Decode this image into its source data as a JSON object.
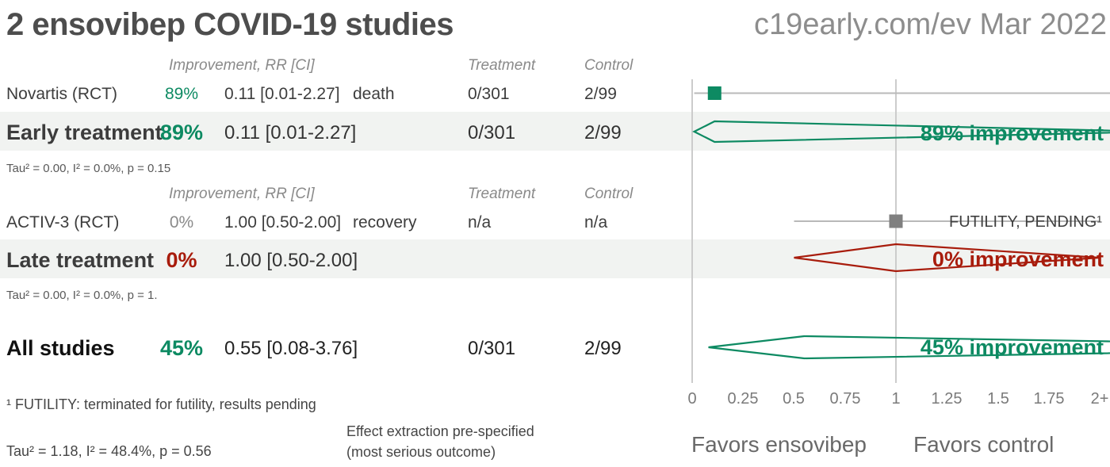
{
  "header": {
    "title": "2 ensovibep COVID-19 studies",
    "site": "c19early.com/ev Mar 2022"
  },
  "columns": {
    "improvement": "Improvement, RR [CI]",
    "treatment": "Treatment",
    "control": "Control"
  },
  "rows": {
    "novartis": {
      "name": "Novartis (RCT)",
      "pct": "89%",
      "rr": "0.11 [0.01-2.27]",
      "outcome": "death",
      "treatment": "0/301",
      "control": "2/99"
    },
    "early": {
      "name": "Early treatment",
      "pct": "89%",
      "rr": "0.11 [0.01-2.27]",
      "treatment": "0/301",
      "control": "2/99",
      "tau": "Tau² = 0.00, I² = 0.0%, p = 0.15"
    },
    "activ3": {
      "name": "ACTIV-3 (RCT)",
      "pct": "0%",
      "rr": "1.00 [0.50-2.00]",
      "outcome": "recovery",
      "treatment": "n/a",
      "control": "n/a"
    },
    "late": {
      "name": "Late treatment",
      "pct": "0%",
      "rr": "1.00 [0.50-2.00]",
      "tau": "Tau² = 0.00, I² = 0.0%, p = 1."
    },
    "all": {
      "name": "All studies",
      "pct": "45%",
      "rr": "0.55 [0.08-3.76]",
      "treatment": "0/301",
      "control": "2/99",
      "tau": "Tau² = 1.18, I² = 48.4%, p = 0.56"
    }
  },
  "notes": {
    "footnote": "¹ FUTILITY: terminated for futility, results pending",
    "effect_line1": "Effect extraction pre-specified",
    "effect_line2": "(most serious outcome)"
  },
  "plot": {
    "labels": {
      "early": "89% improvement",
      "late": "0% improvement",
      "all": "45% improvement",
      "futility": "FUTILITY, PENDING¹"
    },
    "ticks": [
      "0",
      "0.25",
      "0.5",
      "0.75",
      "1",
      "1.25",
      "1.5",
      "1.75",
      "2+"
    ],
    "favors_left": "Favors ensovibep",
    "favors_right": "Favors control"
  },
  "colors": {
    "green": "#0d8a62",
    "red": "#a81c0c",
    "gray_marker": "#7f7f7f",
    "ci_line": "#b9b9b9",
    "gridline": "#cccccc",
    "band_bg": "#f1f3f1"
  },
  "chart_data": {
    "type": "forest",
    "title": "2 ensovibep COVID-19 studies",
    "source": "c19early.com/ev Mar 2022",
    "x_axis": {
      "ticks": [
        0,
        0.25,
        0.5,
        0.75,
        1,
        1.25,
        1.5,
        1.75,
        2
      ],
      "clip_max_label": "2+",
      "gridlines_at": [
        0,
        1
      ]
    },
    "favors": {
      "left": "Favors ensovibep",
      "right": "Favors control"
    },
    "rows": [
      {
        "id": "novartis",
        "label": "Novartis (RCT)",
        "improvement_pct": 89,
        "rr": 0.11,
        "ci": [
          0.01,
          2.27
        ],
        "outcome": "death",
        "treatment": "0/301",
        "control": "2/99",
        "marker": "square",
        "color": "green"
      },
      {
        "id": "early",
        "label": "Early treatment",
        "improvement_pct": 89,
        "rr": 0.11,
        "ci": [
          0.01,
          2.27
        ],
        "treatment": "0/301",
        "control": "2/99",
        "marker": "diamond",
        "color": "green",
        "heterogeneity": "Tau² = 0.00, I² = 0.0%, p = 0.15"
      },
      {
        "id": "activ3",
        "label": "ACTIV-3 (RCT)",
        "improvement_pct": 0,
        "rr": 1.0,
        "ci": [
          0.5,
          2.0
        ],
        "outcome": "recovery",
        "treatment": "n/a",
        "control": "n/a",
        "marker": "square",
        "color": "gray",
        "annotation": "FUTILITY, PENDING¹"
      },
      {
        "id": "late",
        "label": "Late treatment",
        "improvement_pct": 0,
        "rr": 1.0,
        "ci": [
          0.5,
          2.0
        ],
        "marker": "diamond",
        "color": "red",
        "heterogeneity": "Tau² = 0.00, I² = 0.0%, p = 1."
      },
      {
        "id": "all",
        "label": "All studies",
        "improvement_pct": 45,
        "rr": 0.55,
        "ci": [
          0.08,
          3.76
        ],
        "treatment": "0/301",
        "control": "2/99",
        "marker": "diamond",
        "color": "green",
        "heterogeneity": "Tau² = 1.18, I² = 48.4%, p = 0.56"
      }
    ]
  }
}
